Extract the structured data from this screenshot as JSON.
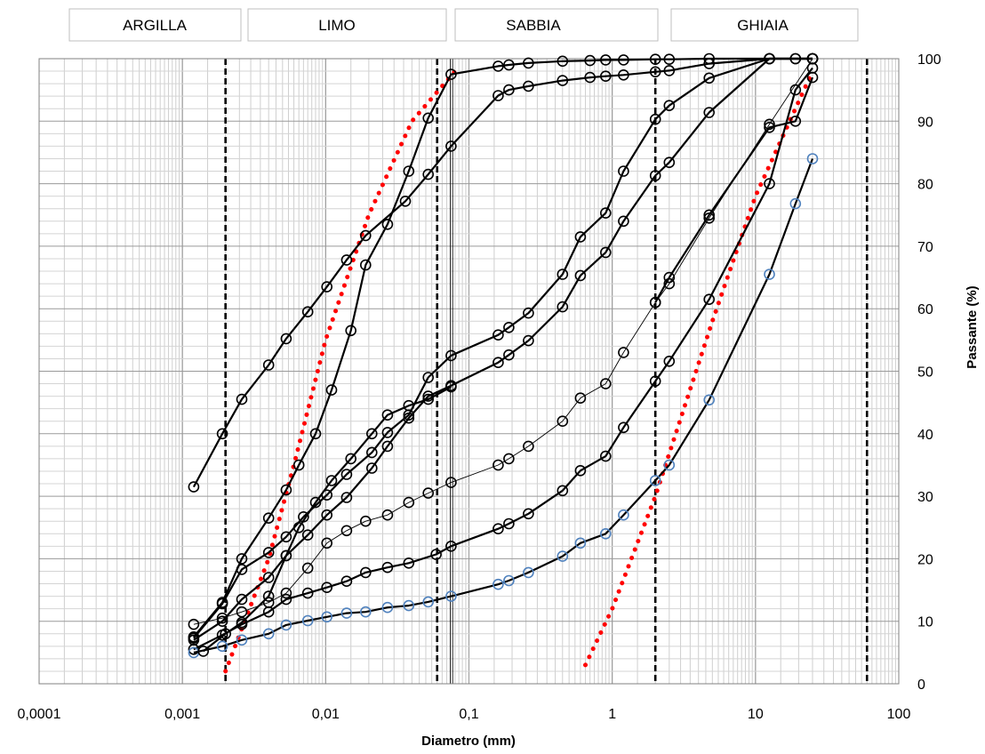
{
  "chart_data": {
    "type": "scatter",
    "title": "",
    "xlabel": "Diametro (mm)",
    "ylabel": "Passante (%)",
    "x_scale": "log",
    "xlim": [
      0.0001,
      100
    ],
    "ylim": [
      0,
      100
    ],
    "grid": true,
    "x_tick_labels": [
      "0,0001",
      "0,001",
      "0,01",
      "0,1",
      "1",
      "10",
      "100"
    ],
    "y_tick_labels": [
      "0",
      "10",
      "20",
      "30",
      "40",
      "50",
      "60",
      "70",
      "80",
      "90",
      "100"
    ],
    "zones": [
      {
        "label": "ARGILLA"
      },
      {
        "label": "LIMO"
      },
      {
        "label": "SABBIA"
      },
      {
        "label": "GHIAIA"
      }
    ],
    "boundaries": [
      0.002,
      0.06,
      2,
      60
    ],
    "red_dotted": [
      {
        "x": [
          0.002,
          0.004,
          0.006,
          0.01,
          0.02,
          0.04,
          0.08
        ],
        "y": [
          2,
          20,
          35,
          55,
          75,
          90,
          98
        ]
      },
      {
        "x": [
          0.65,
          1.0,
          2.0,
          5.0,
          10,
          25
        ],
        "y": [
          3,
          12,
          30,
          58,
          78,
          98
        ]
      }
    ],
    "series": [
      {
        "color": "#000000",
        "marker_color": "#000000",
        "width": 2.2,
        "x": [
          0.0012,
          0.0019,
          0.0026,
          0.004,
          0.0053,
          0.0075,
          0.0102,
          0.014,
          0.019,
          0.036,
          0.052,
          0.075,
          0.16,
          0.19,
          0.26,
          0.45,
          0.7,
          0.9,
          1.2,
          2.0,
          2.5,
          4.75,
          12.5,
          19,
          25
        ],
        "y": [
          31.5,
          40,
          45.5,
          51,
          55.2,
          59.5,
          63.5,
          67.8,
          71.7,
          77.2,
          81.5,
          86,
          94.1,
          95,
          95.6,
          96.5,
          97,
          97.2,
          97.4,
          97.9,
          98.1,
          99.2,
          100,
          100,
          100
        ]
      },
      {
        "color": "#000000",
        "marker_color": "#000000",
        "width": 2.2,
        "x": [
          0.0012,
          0.0019,
          0.0026,
          0.004,
          0.0053,
          0.0065,
          0.0085,
          0.011,
          0.015,
          0.019,
          0.027,
          0.038,
          0.052,
          0.075,
          0.16,
          0.19,
          0.26,
          0.45,
          0.7,
          0.9,
          1.2,
          2.0,
          2.5,
          4.75,
          12.5,
          19,
          25
        ],
        "y": [
          7.5,
          13,
          20,
          26.5,
          31,
          35,
          40,
          47,
          56.5,
          67,
          73.5,
          82,
          90.5,
          97.5,
          98.8,
          99,
          99.3,
          99.6,
          99.7,
          99.8,
          99.8,
          99.9,
          99.9,
          100,
          100,
          100,
          100
        ]
      },
      {
        "color": "#000000",
        "marker_color": "#000000",
        "width": 2.2,
        "x": [
          0.0012,
          0.0019,
          0.0026,
          0.004,
          0.0053,
          0.007,
          0.0102,
          0.014,
          0.021,
          0.027,
          0.038,
          0.052,
          0.075,
          0.16,
          0.19,
          0.26,
          0.45,
          0.6,
          0.9,
          1.2,
          2.0,
          2.5,
          4.75,
          12.5,
          25
        ],
        "y": [
          7.3,
          12.8,
          18.3,
          21,
          23.5,
          26.7,
          30.2,
          33.5,
          37,
          40.2,
          43,
          49,
          52.5,
          55.8,
          57,
          59.3,
          65.5,
          71.5,
          75.3,
          82,
          90.3,
          92.5,
          96.9,
          100,
          100
        ]
      },
      {
        "color": "#000000",
        "marker_color": "#000000",
        "width": 2.2,
        "x": [
          0.0012,
          0.0019,
          0.0026,
          0.004,
          0.0053,
          0.0075,
          0.0102,
          0.014,
          0.021,
          0.027,
          0.038,
          0.052,
          0.075,
          0.16,
          0.19,
          0.26,
          0.45,
          0.6,
          0.9,
          1.2,
          2.0,
          2.5,
          4.75,
          12.5,
          25
        ],
        "y": [
          7,
          10,
          13.5,
          17,
          20.5,
          23.8,
          27,
          29.8,
          34.5,
          38,
          42.5,
          46,
          47.7,
          51.4,
          52.6,
          54.9,
          60.3,
          65.3,
          69,
          74,
          81.3,
          83.4,
          91.4,
          100,
          100
        ]
      },
      {
        "color": "#000000",
        "marker_color": "#000000",
        "width": 0.9,
        "x": [
          0.0012,
          0.0019,
          0.0026,
          0.004,
          0.0053,
          0.0075,
          0.0102,
          0.014,
          0.019,
          0.027,
          0.038,
          0.052,
          0.075,
          0.16,
          0.19,
          0.26,
          0.45,
          0.6,
          0.9,
          1.2,
          2.0,
          2.5,
          4.75,
          12.5,
          25
        ],
        "y": [
          9.5,
          10.5,
          11.5,
          13,
          14.5,
          18.5,
          22.5,
          24.5,
          26,
          27,
          29,
          30.5,
          32.2,
          35,
          36,
          38,
          42,
          45.7,
          48,
          53,
          61,
          64,
          74.5,
          89.5,
          100
        ]
      },
      {
        "color": "#000000",
        "marker_color": "#000000",
        "width": 2.2,
        "x": [
          0.0012,
          0.0019,
          0.0026,
          0.004,
          0.0053,
          0.0075,
          0.0102,
          0.014,
          0.019,
          0.027,
          0.038,
          0.059,
          0.075,
          0.16,
          0.19,
          0.26,
          0.45,
          0.6,
          0.9,
          1.2,
          2.0,
          2.5,
          4.75,
          12.5,
          19,
          25
        ],
        "y": [
          5.5,
          7.8,
          9.5,
          11.5,
          13.5,
          14.5,
          15.4,
          16.4,
          17.8,
          18.6,
          19.3,
          20.7,
          22,
          24.8,
          25.6,
          27.2,
          30.9,
          34.1,
          36.4,
          41,
          48.4,
          51.6,
          61.5,
          80,
          95,
          98.5
        ]
      },
      {
        "color": "#4f81bd",
        "marker_color": "#4f81bd",
        "width": 2.2,
        "x": [
          0.0012,
          0.0019,
          0.0026,
          0.004,
          0.0053,
          0.0075,
          0.0102,
          0.014,
          0.019,
          0.027,
          0.038,
          0.052,
          0.075,
          0.16,
          0.19,
          0.26,
          0.45,
          0.6,
          0.9,
          1.2,
          2.0,
          2.5,
          4.75,
          12.5,
          19,
          25
        ],
        "y": [
          5,
          6,
          7,
          8,
          9.4,
          10.1,
          10.7,
          11.3,
          11.5,
          12.2,
          12.5,
          13.1,
          14,
          15.9,
          16.5,
          17.8,
          20.4,
          22.5,
          24,
          27,
          32.5,
          35,
          45.4,
          65.5,
          76.8,
          84
        ]
      },
      {
        "color": "#000000",
        "marker_color": "#000000",
        "width": 2.2,
        "x": [
          0.0014,
          0.002,
          0.0026,
          0.004,
          0.0053,
          0.0065,
          0.0085,
          0.011,
          0.015,
          0.021,
          0.027,
          0.038,
          0.052,
          0.075
        ],
        "y": [
          5.2,
          8,
          9.8,
          14,
          20.5,
          25,
          29,
          32.5,
          36,
          40,
          43,
          44.5,
          45.5,
          47.5
        ]
      },
      {
        "color": "#000000",
        "marker_color": "#000000",
        "width": 2.2,
        "x": [
          2.0,
          2.5,
          4.75,
          12.5,
          19,
          25
        ],
        "y": [
          61,
          65,
          75,
          89,
          90,
          97
        ]
      }
    ]
  }
}
